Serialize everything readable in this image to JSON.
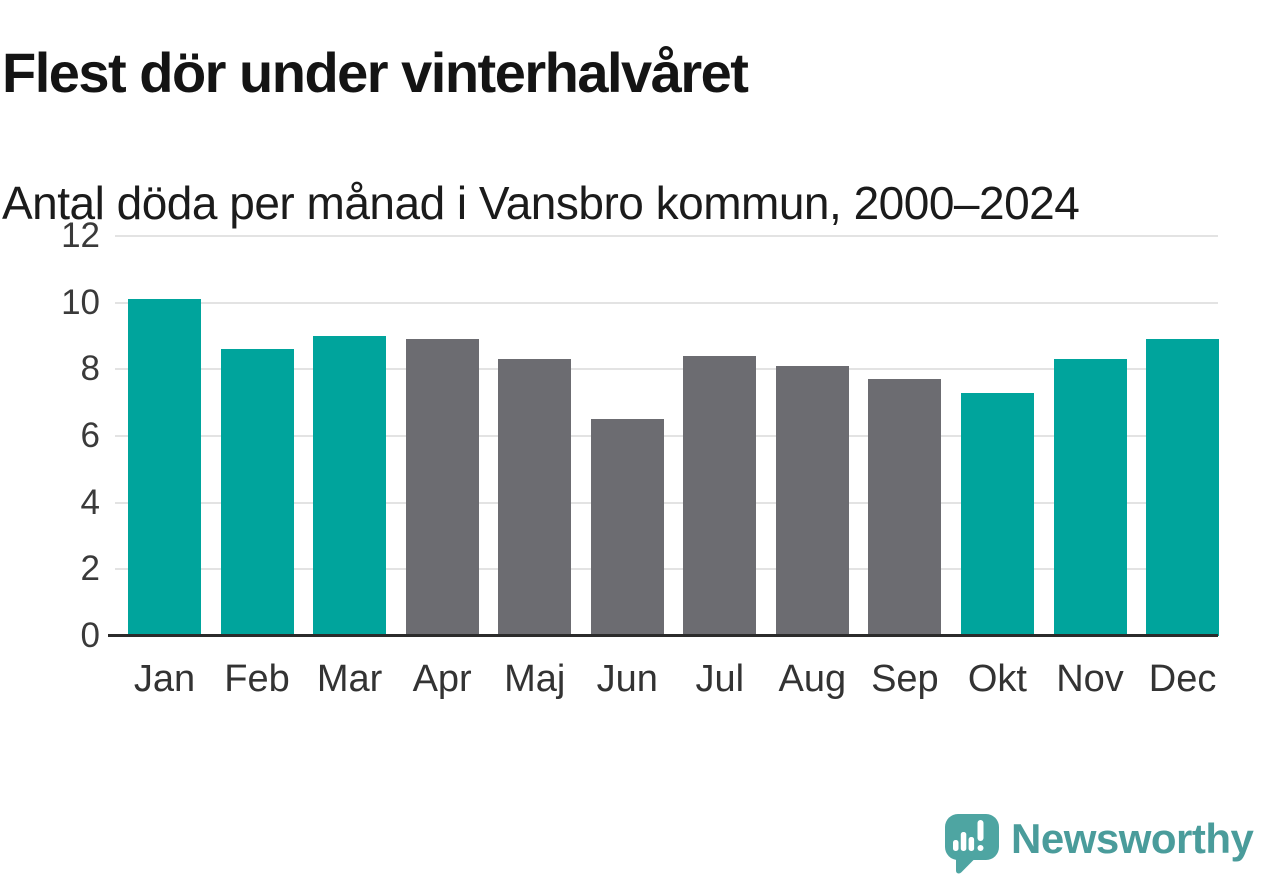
{
  "header": {
    "title": "Flest dör under vinterhalvåret",
    "subtitle": "Antal döda per månad i Vansbro kommun, 2000–2024"
  },
  "chart_data": {
    "type": "bar",
    "title": "Flest dör under vinterhalvåret",
    "subtitle": "Antal döda per månad i Vansbro kommun, 2000–2024",
    "categories": [
      "Jan",
      "Feb",
      "Mar",
      "Apr",
      "Maj",
      "Jun",
      "Jul",
      "Aug",
      "Sep",
      "Okt",
      "Nov",
      "Dec"
    ],
    "values": [
      10.1,
      8.6,
      9.0,
      8.9,
      8.3,
      6.5,
      8.4,
      8.1,
      7.7,
      7.3,
      8.3,
      8.9
    ],
    "bar_color_keys": [
      "winter",
      "winter",
      "winter",
      "summer",
      "summer",
      "summer",
      "summer",
      "summer",
      "summer",
      "winter",
      "winter",
      "winter"
    ],
    "palette": {
      "winter": "#00a49c",
      "summer": "#6c6c71"
    },
    "xlabel": "",
    "ylabel": "",
    "ylim": [
      0,
      12
    ],
    "yticks": [
      0,
      2,
      4,
      6,
      8,
      10,
      12
    ],
    "grid": "horizontal",
    "legend": "none",
    "gridline_color": "#e3e3e3",
    "axis_line_color": "#2b2b2b",
    "tick_label_color": "#3a3a3a"
  },
  "footer": {
    "brand": "Newsworthy",
    "brand_color": "#4a9c9b",
    "logo_bubble_color": "#4ea5a2",
    "logo_icon": "speech-bubble-bar-chart-icon"
  }
}
